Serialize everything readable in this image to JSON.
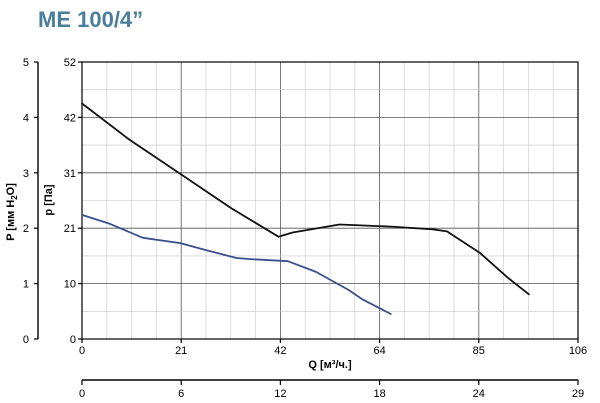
{
  "title": "ME 100/4”",
  "chart_data": {
    "type": "line",
    "title": "ME 100/4”",
    "xlabel": "Q [м³/ч.]",
    "x_ticks": [
      "0",
      "21",
      "42",
      "64",
      "85",
      "106"
    ],
    "xlim": [
      0,
      106
    ],
    "x2_ticks": [
      "0",
      "6",
      "12",
      "18",
      "24",
      "29"
    ],
    "x2lim": [
      0,
      29
    ],
    "ylabel_left": "P [мм H",
    "ylabel_left_sub": "2",
    "ylabel_left_end": "O]",
    "y_left_ticks": [
      "0",
      "1",
      "2",
      "3",
      "4",
      "5"
    ],
    "y_left_lim": [
      0,
      5
    ],
    "ylabel_right": "p [Па]",
    "y_right_ticks": [
      "0",
      "10",
      "21",
      "31",
      "42",
      "52"
    ],
    "ylim": [
      0,
      52
    ],
    "grid": true,
    "series": [
      {
        "color": "#111111",
        "x": [
          0,
          10,
          21,
          32,
          42,
          45,
          55,
          66,
          75,
          78,
          85,
          91,
          95.5
        ],
        "y": [
          44.2,
          37.5,
          31,
          24.5,
          19.2,
          20.0,
          21.5,
          21.1,
          20.6,
          20.2,
          16.2,
          11.5,
          8.4
        ]
      },
      {
        "color": "#3a4f8c",
        "x": [
          0,
          6,
          13,
          21,
          26,
          33,
          36,
          44,
          50,
          57,
          60,
          64,
          66
        ],
        "y": [
          23.3,
          21.6,
          19.0,
          18.0,
          16.8,
          15.2,
          15.0,
          14.6,
          12.6,
          9.2,
          7.4,
          5.6,
          4.7
        ]
      }
    ]
  }
}
